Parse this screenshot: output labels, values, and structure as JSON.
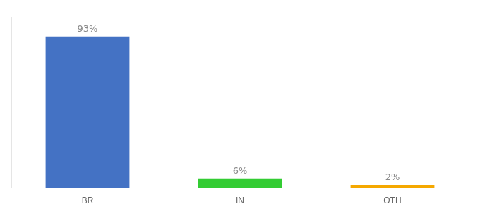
{
  "chart_data": {
    "type": "bar",
    "categories": [
      "BR",
      "IN",
      "OTH"
    ],
    "values": [
      93,
      6,
      2
    ],
    "value_labels": [
      "93%",
      "6%",
      "2%"
    ],
    "colors": [
      "#4472C4",
      "#33CC33",
      "#F5A800"
    ],
    "ylim": [
      0,
      105
    ],
    "grid": false,
    "data_labels": true,
    "tick_labels": "x"
  }
}
